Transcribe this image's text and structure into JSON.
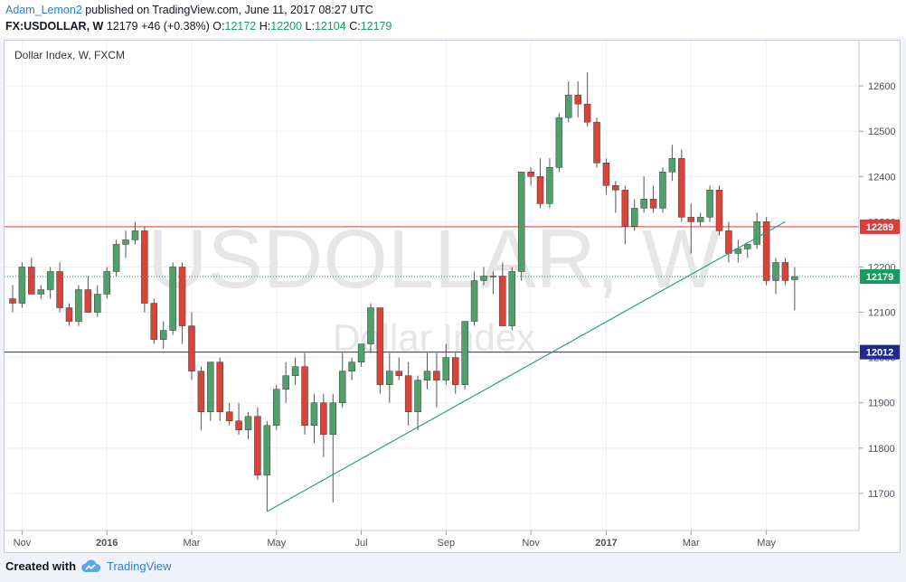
{
  "header": {
    "author": "Adam_Lemon2",
    "published": "published on TradingView.com, June 11, 2017 08:27 UTC",
    "symbol": "FX:USDOLLAR, W",
    "last": "12179",
    "change": "+46 (+0.38%)",
    "open_label": "O:",
    "open": "12172",
    "high_label": "H:",
    "high": "12200",
    "low_label": "L:",
    "low": "12104",
    "close_label": "C:",
    "close": "12179"
  },
  "footer": {
    "created_with": "Created with",
    "brand": "TradingView"
  },
  "chart_data": {
    "type": "candlestick",
    "title": "Dollar Index, W, FXCM",
    "watermark_symbol": "USDOLLAR, W",
    "watermark_name": "Dollar Index",
    "ylim": [
      11620,
      12700
    ],
    "y_ticks": [
      11700,
      11800,
      11900,
      12000,
      12100,
      12200,
      12300,
      12400,
      12500,
      12600
    ],
    "x_ticks": [
      {
        "label": "Nov",
        "index": 1
      },
      {
        "label": "2016",
        "index": 10
      },
      {
        "label": "Mar",
        "index": 19
      },
      {
        "label": "May",
        "index": 28
      },
      {
        "label": "Jul",
        "index": 37
      },
      {
        "label": "Sep",
        "index": 46
      },
      {
        "label": "Nov",
        "index": 55
      },
      {
        "label": "2017",
        "index": 63
      },
      {
        "label": "Mar",
        "index": 72
      },
      {
        "label": "May",
        "index": 80
      }
    ],
    "candles": [
      {
        "o": 12130,
        "h": 12160,
        "l": 12100,
        "c": 12120
      },
      {
        "o": 12120,
        "h": 12210,
        "l": 12110,
        "c": 12200
      },
      {
        "o": 12200,
        "h": 12220,
        "l": 12140,
        "c": 12140
      },
      {
        "o": 12140,
        "h": 12160,
        "l": 12130,
        "c": 12150
      },
      {
        "o": 12150,
        "h": 12200,
        "l": 12130,
        "c": 12190
      },
      {
        "o": 12190,
        "h": 12210,
        "l": 12100,
        "c": 12110
      },
      {
        "o": 12110,
        "h": 12120,
        "l": 12070,
        "c": 12080
      },
      {
        "o": 12080,
        "h": 12160,
        "l": 12070,
        "c": 12150
      },
      {
        "o": 12150,
        "h": 12180,
        "l": 12100,
        "c": 12100
      },
      {
        "o": 12100,
        "h": 12160,
        "l": 12090,
        "c": 12140
      },
      {
        "o": 12140,
        "h": 12200,
        "l": 12130,
        "c": 12190
      },
      {
        "o": 12190,
        "h": 12260,
        "l": 12180,
        "c": 12250
      },
      {
        "o": 12250,
        "h": 12280,
        "l": 12220,
        "c": 12260
      },
      {
        "o": 12260,
        "h": 12300,
        "l": 12250,
        "c": 12280
      },
      {
        "o": 12280,
        "h": 12290,
        "l": 12100,
        "c": 12120
      },
      {
        "o": 12120,
        "h": 12130,
        "l": 12030,
        "c": 12040
      },
      {
        "o": 12040,
        "h": 12080,
        "l": 12020,
        "c": 12060
      },
      {
        "o": 12060,
        "h": 12210,
        "l": 12050,
        "c": 12200
      },
      {
        "o": 12200,
        "h": 12210,
        "l": 12030,
        "c": 12070
      },
      {
        "o": 12070,
        "h": 12100,
        "l": 11950,
        "c": 11970
      },
      {
        "o": 11970,
        "h": 11980,
        "l": 11840,
        "c": 11880
      },
      {
        "o": 11880,
        "h": 11990,
        "l": 11860,
        "c": 11990
      },
      {
        "o": 11990,
        "h": 12000,
        "l": 11860,
        "c": 11880
      },
      {
        "o": 11880,
        "h": 11900,
        "l": 11850,
        "c": 11860
      },
      {
        "o": 11860,
        "h": 11900,
        "l": 11830,
        "c": 11840
      },
      {
        "o": 11840,
        "h": 11880,
        "l": 11820,
        "c": 11870
      },
      {
        "o": 11870,
        "h": 11890,
        "l": 11730,
        "c": 11740
      },
      {
        "o": 11740,
        "h": 11860,
        "l": 11660,
        "c": 11850
      },
      {
        "o": 11850,
        "h": 11940,
        "l": 11840,
        "c": 11930
      },
      {
        "o": 11930,
        "h": 11990,
        "l": 11900,
        "c": 11960
      },
      {
        "o": 11960,
        "h": 12000,
        "l": 11940,
        "c": 11980
      },
      {
        "o": 11980,
        "h": 12010,
        "l": 11830,
        "c": 11850
      },
      {
        "o": 11850,
        "h": 11920,
        "l": 11810,
        "c": 11900
      },
      {
        "o": 11900,
        "h": 11920,
        "l": 11780,
        "c": 11830
      },
      {
        "o": 11830,
        "h": 11920,
        "l": 11680,
        "c": 11900
      },
      {
        "o": 11900,
        "h": 12010,
        "l": 11890,
        "c": 11970
      },
      {
        "o": 11970,
        "h": 12000,
        "l": 11950,
        "c": 11990
      },
      {
        "o": 11990,
        "h": 12030,
        "l": 11980,
        "c": 12030
      },
      {
        "o": 12030,
        "h": 12120,
        "l": 12010,
        "c": 12110
      },
      {
        "o": 12110,
        "h": 12110,
        "l": 11920,
        "c": 11940
      },
      {
        "o": 11940,
        "h": 12010,
        "l": 11900,
        "c": 11970
      },
      {
        "o": 11970,
        "h": 12000,
        "l": 11950,
        "c": 11960
      },
      {
        "o": 11960,
        "h": 11990,
        "l": 11850,
        "c": 11880
      },
      {
        "o": 11880,
        "h": 11960,
        "l": 11840,
        "c": 11950
      },
      {
        "o": 11950,
        "h": 12010,
        "l": 11930,
        "c": 11970
      },
      {
        "o": 11970,
        "h": 12010,
        "l": 11890,
        "c": 11950
      },
      {
        "o": 11950,
        "h": 12030,
        "l": 11940,
        "c": 12000
      },
      {
        "o": 12000,
        "h": 12010,
        "l": 11920,
        "c": 11940
      },
      {
        "o": 11940,
        "h": 12080,
        "l": 11930,
        "c": 12080
      },
      {
        "o": 12080,
        "h": 12190,
        "l": 12070,
        "c": 12170
      },
      {
        "o": 12170,
        "h": 12200,
        "l": 12160,
        "c": 12180
      },
      {
        "o": 12180,
        "h": 12190,
        "l": 12140,
        "c": 12180
      },
      {
        "o": 12180,
        "h": 12210,
        "l": 12070,
        "c": 12070
      },
      {
        "o": 12070,
        "h": 12200,
        "l": 12060,
        "c": 12190
      },
      {
        "o": 12190,
        "h": 12410,
        "l": 12170,
        "c": 12410
      },
      {
        "o": 12410,
        "h": 12420,
        "l": 12380,
        "c": 12400
      },
      {
        "o": 12400,
        "h": 12440,
        "l": 12330,
        "c": 12340
      },
      {
        "o": 12340,
        "h": 12440,
        "l": 12330,
        "c": 12420
      },
      {
        "o": 12420,
        "h": 12540,
        "l": 12410,
        "c": 12530
      },
      {
        "o": 12530,
        "h": 12610,
        "l": 12520,
        "c": 12580
      },
      {
        "o": 12580,
        "h": 12610,
        "l": 12530,
        "c": 12560
      },
      {
        "o": 12560,
        "h": 12630,
        "l": 12510,
        "c": 12520
      },
      {
        "o": 12520,
        "h": 12530,
        "l": 12420,
        "c": 12430
      },
      {
        "o": 12430,
        "h": 12440,
        "l": 12360,
        "c": 12380
      },
      {
        "o": 12380,
        "h": 12390,
        "l": 12320,
        "c": 12370
      },
      {
        "o": 12370,
        "h": 12380,
        "l": 12250,
        "c": 12290
      },
      {
        "o": 12290,
        "h": 12350,
        "l": 12280,
        "c": 12330
      },
      {
        "o": 12330,
        "h": 12400,
        "l": 12320,
        "c": 12350
      },
      {
        "o": 12350,
        "h": 12380,
        "l": 12320,
        "c": 12330
      },
      {
        "o": 12330,
        "h": 12420,
        "l": 12320,
        "c": 12410
      },
      {
        "o": 12410,
        "h": 12470,
        "l": 12390,
        "c": 12440
      },
      {
        "o": 12440,
        "h": 12460,
        "l": 12300,
        "c": 12310
      },
      {
        "o": 12310,
        "h": 12340,
        "l": 12230,
        "c": 12300
      },
      {
        "o": 12300,
        "h": 12320,
        "l": 12290,
        "c": 12310
      },
      {
        "o": 12310,
        "h": 12380,
        "l": 12300,
        "c": 12370
      },
      {
        "o": 12370,
        "h": 12380,
        "l": 12270,
        "c": 12280
      },
      {
        "o": 12280,
        "h": 12300,
        "l": 12210,
        "c": 12230
      },
      {
        "o": 12230,
        "h": 12260,
        "l": 12210,
        "c": 12240
      },
      {
        "o": 12240,
        "h": 12250,
        "l": 12220,
        "c": 12250
      },
      {
        "o": 12250,
        "h": 12320,
        "l": 12240,
        "c": 12300
      },
      {
        "o": 12300,
        "h": 12310,
        "l": 12160,
        "c": 12170
      },
      {
        "o": 12170,
        "h": 12220,
        "l": 12140,
        "c": 12210
      },
      {
        "o": 12210,
        "h": 12220,
        "l": 12160,
        "c": 12170
      },
      {
        "o": 12172,
        "h": 12200,
        "l": 12104,
        "c": 12179
      }
    ],
    "horizontal_lines": [
      {
        "value": 12289,
        "label": "12289",
        "color": "#e03a3a"
      },
      {
        "value": 12012,
        "label": "12012",
        "color": "#1f2a8a"
      }
    ],
    "last_price": {
      "value": 12179,
      "label": "12179",
      "color": "#1a9a62"
    },
    "trendline": {
      "from_index": 27,
      "from_value": 11660,
      "to_index": 82,
      "to_value": 12300,
      "color": "#28a08a"
    },
    "colors": {
      "up": "#4fa06a",
      "down": "#d9443a",
      "wick": "#555555",
      "grid": "#eceff4"
    }
  }
}
